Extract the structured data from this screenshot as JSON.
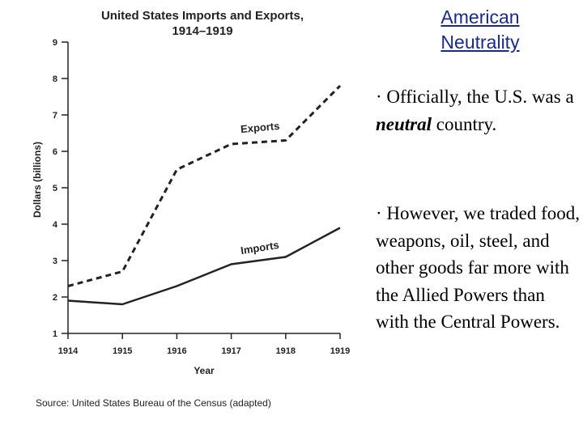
{
  "slide": {
    "title": "American Neutrality",
    "bullet_marker": "·",
    "bullet_1": {
      "before": "Officially, the U.S. was a ",
      "emphasis": "neutral",
      "after": " country."
    },
    "bullet_2": "However, we traded food, weapons, oil, steel, and other goods far more with the Allied Powers than with the Central Powers."
  },
  "chart_data": {
    "type": "line",
    "title": "United States Imports and Exports, 1914–1919",
    "xlabel": "Year",
    "ylabel": "Dollars (billions)",
    "x": [
      1914,
      1915,
      1916,
      1917,
      1918,
      1919
    ],
    "xlim": [
      1914,
      1919
    ],
    "ylim": [
      1,
      9
    ],
    "yticks": [
      1,
      2,
      3,
      4,
      5,
      6,
      7,
      8,
      9
    ],
    "grid": false,
    "source": "Source: United States Bureau of the Census (adapted)",
    "series": [
      {
        "name": "Exports",
        "style": "dashed",
        "values": [
          2.3,
          2.7,
          5.5,
          6.2,
          6.3,
          7.8
        ]
      },
      {
        "name": "Imports",
        "style": "solid",
        "values": [
          1.9,
          1.8,
          2.3,
          2.9,
          3.1,
          3.9
        ]
      }
    ]
  },
  "colors": {
    "line": "#222222",
    "title_link": "#1a2a8a",
    "text": "#000000"
  }
}
